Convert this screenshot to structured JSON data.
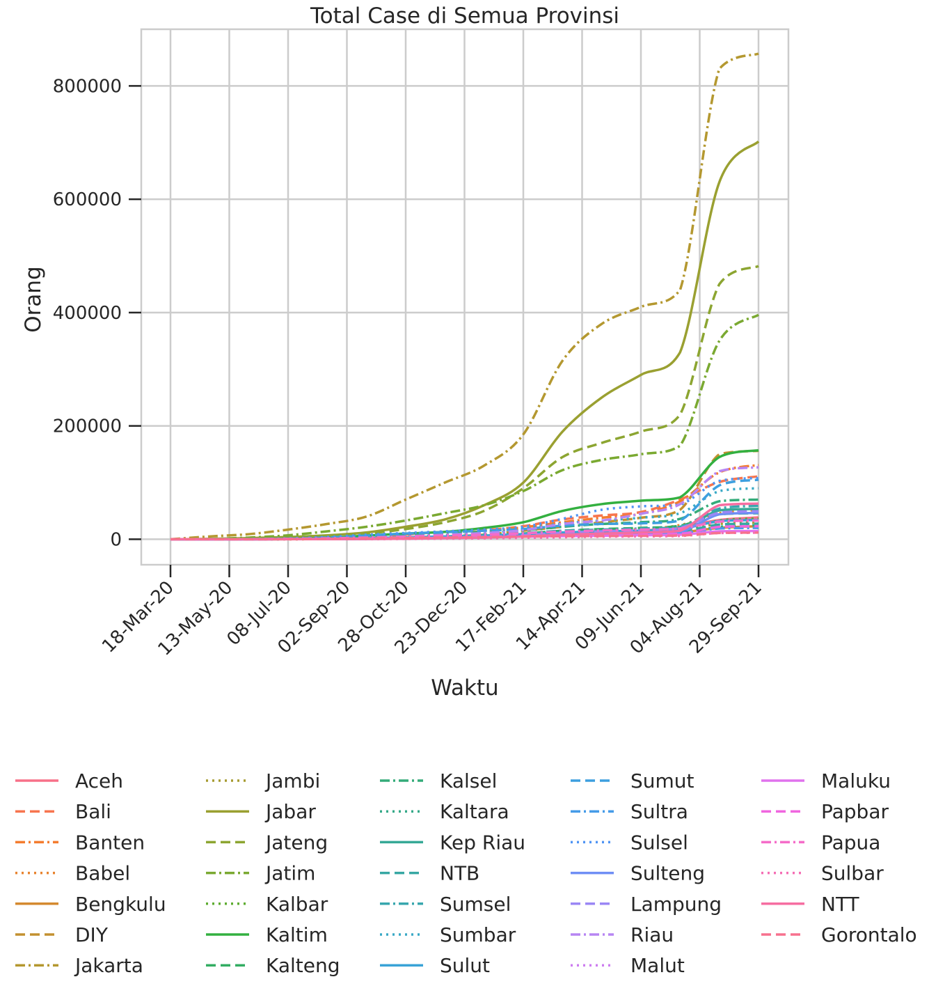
{
  "chart_data": {
    "type": "line",
    "title": "Total Case di Semua Provinsi",
    "xlabel": "Waktu",
    "ylabel": "Orang",
    "x_ticks": [
      "18-Mar-20",
      "13-May-20",
      "08-Jul-20",
      "02-Sep-20",
      "28-Oct-20",
      "23-Dec-20",
      "17-Feb-21",
      "14-Apr-21",
      "09-Jun-21",
      "04-Aug-21",
      "29-Sep-21"
    ],
    "y_ticks": [
      0,
      200000,
      400000,
      600000,
      800000
    ],
    "ylim": [
      -45000,
      900000
    ],
    "grid": true,
    "legend_position": "below",
    "series": [
      {
        "name": "Aceh",
        "color": "#f77189",
        "dash": "solid",
        "values": [
          0,
          10,
          30,
          80,
          200,
          800,
          1600,
          3000,
          5500,
          8000,
          9500,
          11500,
          15000,
          21000,
          34000,
          38500
        ]
      },
      {
        "name": "Bali",
        "color": "#f7754f",
        "dash": "dashed",
        "values": [
          0,
          50,
          150,
          500,
          1500,
          4500,
          8500,
          13000,
          16000,
          23000,
          35000,
          42000,
          48000,
          70000,
          101000,
          111000
        ]
      },
      {
        "name": "Banten",
        "color": "#f47c2f",
        "dash": "dashdot",
        "values": [
          0,
          30,
          150,
          600,
          1500,
          4500,
          8000,
          11000,
          14000,
          21000,
          30000,
          38000,
          45000,
          67000,
          118000,
          131000
        ]
      },
      {
        "name": "Babel",
        "color": "#e8832f",
        "dash": "dotted",
        "values": [
          0,
          0,
          10,
          50,
          150,
          400,
          1200,
          2500,
          4500,
          8000,
          11000,
          14000,
          18000,
          25000,
          46000,
          51500
        ]
      },
      {
        "name": "Bengkulu",
        "color": "#d48a30",
        "dash": "solid",
        "values": [
          0,
          5,
          30,
          90,
          250,
          700,
          1500,
          2500,
          3500,
          5000,
          6000,
          7000,
          8000,
          12000,
          20000,
          23000
        ]
      },
      {
        "name": "DIY",
        "color": "#c39130",
        "dash": "dashed",
        "values": [
          0,
          40,
          120,
          250,
          600,
          1400,
          3000,
          5000,
          8000,
          15000,
          22000,
          30000,
          38000,
          52000,
          150000,
          156000
        ]
      },
      {
        "name": "Jakarta",
        "color": "#b49830",
        "dash": "dashdot",
        "values": [
          0,
          5000,
          9000,
          17000,
          27000,
          40000,
          70000,
          100000,
          130000,
          185000,
          315000,
          380000,
          410000,
          440000,
          830000,
          857000
        ]
      },
      {
        "name": "Jambi",
        "color": "#a69b31",
        "dash": "dotted",
        "values": [
          0,
          5,
          20,
          60,
          150,
          400,
          1200,
          2500,
          4000,
          6000,
          7000,
          8500,
          10000,
          15000,
          27000,
          29500
        ]
      },
      {
        "name": "Jabar",
        "color": "#9aa031",
        "dash": "solid",
        "values": [
          0,
          600,
          2000,
          4000,
          7000,
          12000,
          22000,
          35000,
          60000,
          100000,
          190000,
          250000,
          290000,
          330000,
          630000,
          702000
        ]
      },
      {
        "name": "Jateng",
        "color": "#8ca531",
        "dash": "dashed",
        "values": [
          0,
          400,
          1500,
          3500,
          6000,
          10000,
          18000,
          30000,
          50000,
          90000,
          145000,
          170000,
          190000,
          220000,
          450000,
          482000
        ]
      },
      {
        "name": "Jatim",
        "color": "#7aa931",
        "dash": "dashdot",
        "values": [
          0,
          700,
          3000,
          7000,
          14000,
          22000,
          33000,
          46000,
          60000,
          85000,
          122000,
          140000,
          150000,
          165000,
          350000,
          396000
        ]
      },
      {
        "name": "Kalbar",
        "color": "#5eac31",
        "dash": "dotted",
        "values": [
          0,
          20,
          80,
          200,
          400,
          800,
          1500,
          2500,
          3500,
          5500,
          8000,
          9500,
          11000,
          15000,
          33000,
          36500
        ]
      },
      {
        "name": "Kaltim",
        "color": "#33b040",
        "dash": "solid",
        "values": [
          0,
          100,
          300,
          700,
          2500,
          6500,
          10000,
          13000,
          20000,
          30000,
          50000,
          62000,
          68000,
          74000,
          145000,
          157000
        ]
      },
      {
        "name": "Kalteng",
        "color": "#33ad63",
        "dash": "dashed",
        "values": [
          0,
          50,
          150,
          350,
          800,
          1600,
          3000,
          4500,
          7000,
          10000,
          15000,
          18000,
          20000,
          24000,
          44000,
          46000
        ]
      },
      {
        "name": "Kalsel",
        "color": "#34ab79",
        "dash": "dashdot",
        "values": [
          0,
          100,
          500,
          1500,
          3000,
          5500,
          9000,
          11000,
          13000,
          16000,
          22000,
          27000,
          30000,
          36000,
          67000,
          70000
        ]
      },
      {
        "name": "Kaltara",
        "color": "#35a988",
        "dash": "dotted",
        "values": [
          0,
          5,
          30,
          100,
          250,
          600,
          1200,
          2000,
          3000,
          4500,
          6000,
          7000,
          8000,
          10000,
          22000,
          25000
        ]
      },
      {
        "name": "Kep Riau",
        "color": "#36a996",
        "dash": "solid",
        "values": [
          0,
          30,
          150,
          400,
          800,
          1600,
          3000,
          4500,
          6000,
          8000,
          11000,
          13000,
          15000,
          18000,
          51000,
          53500
        ]
      },
      {
        "name": "NTB",
        "color": "#37a7a3",
        "dash": "dashed",
        "values": [
          0,
          30,
          150,
          500,
          1200,
          2000,
          3000,
          4000,
          5000,
          6500,
          8500,
          10000,
          11500,
          13000,
          26000,
          27500
        ]
      },
      {
        "name": "Sumsel",
        "color": "#38a7ae",
        "dash": "dashdot",
        "values": [
          0,
          20,
          150,
          700,
          1800,
          3500,
          5500,
          7000,
          9000,
          11000,
          15000,
          17000,
          19000,
          22000,
          54000,
          59000
        ]
      },
      {
        "name": "Sumbar",
        "color": "#38a9c5",
        "dash": "dotted",
        "values": [
          0,
          40,
          150,
          500,
          1200,
          2500,
          4500,
          7000,
          10000,
          18000,
          28000,
          33000,
          38000,
          46000,
          85000,
          90000
        ]
      },
      {
        "name": "Sulut",
        "color": "#3aa3d7",
        "dash": "solid",
        "values": [
          0,
          5,
          50,
          200,
          800,
          2000,
          3500,
          5000,
          6500,
          9000,
          12000,
          14000,
          15000,
          18000,
          32000,
          34000
        ]
      },
      {
        "name": "Sumut",
        "color": "#3d9fdf",
        "dash": "dashed",
        "values": [
          0,
          30,
          200,
          800,
          3000,
          6500,
          10000,
          12500,
          15000,
          18000,
          24000,
          27000,
          28000,
          33000,
          95000,
          105000
        ]
      },
      {
        "name": "Sultra",
        "color": "#469be8",
        "dash": "dashdot",
        "values": [
          0,
          10,
          60,
          250,
          600,
          1200,
          2000,
          3000,
          4000,
          5500,
          7000,
          8000,
          9000,
          11000,
          19000,
          20000
        ]
      },
      {
        "name": "Sulsel",
        "color": "#4f94f4",
        "dash": "dotted",
        "values": [
          0,
          40,
          300,
          1500,
          4000,
          8000,
          11000,
          14000,
          17000,
          22000,
          36000,
          52000,
          58000,
          61000,
          103000,
          108000
        ]
      },
      {
        "name": "Sulteng",
        "color": "#6f8ef5",
        "dash": "solid",
        "values": [
          0,
          5,
          30,
          100,
          200,
          400,
          1000,
          2000,
          3000,
          5000,
          8000,
          10000,
          11000,
          13000,
          44000,
          46500
        ]
      },
      {
        "name": "Lampung",
        "color": "#9b87f5",
        "dash": "dashed",
        "values": [
          0,
          10,
          50,
          150,
          300,
          700,
          1500,
          2500,
          4000,
          7000,
          11000,
          14000,
          16000,
          20000,
          47000,
          49500
        ]
      },
      {
        "name": "Riau",
        "color": "#b785f3",
        "dash": "dashdot",
        "values": [
          0,
          10,
          100,
          400,
          1000,
          2500,
          5000,
          8000,
          11000,
          16000,
          27000,
          33000,
          45000,
          62000,
          120000,
          127000
        ]
      },
      {
        "name": "Malut",
        "color": "#cd7ef0",
        "dash": "dotted",
        "values": [
          0,
          5,
          40,
          150,
          400,
          800,
          1200,
          1800,
          2500,
          3500,
          4500,
          5000,
          5500,
          6500,
          11000,
          12000
        ]
      },
      {
        "name": "Maluku",
        "color": "#e072ed",
        "dash": "solid",
        "values": [
          0,
          5,
          40,
          150,
          500,
          1000,
          1800,
          2500,
          3500,
          4500,
          5500,
          6200,
          7000,
          8000,
          14000,
          14500
        ]
      },
      {
        "name": "Papbar",
        "color": "#f066df",
        "dash": "dashed",
        "values": [
          0,
          5,
          40,
          150,
          400,
          900,
          1800,
          2800,
          4000,
          5500,
          7000,
          8000,
          8800,
          9500,
          22000,
          23000
        ]
      },
      {
        "name": "Papua",
        "color": "#f56cc9",
        "dash": "dashdot",
        "values": [
          0,
          10,
          200,
          800,
          1500,
          3000,
          4500,
          6500,
          8000,
          10500,
          13500,
          15500,
          17000,
          19000,
          31000,
          33000
        ]
      },
      {
        "name": "Sulbar",
        "color": "#f56db4",
        "dash": "dotted",
        "values": [
          0,
          5,
          20,
          60,
          150,
          300,
          600,
          1000,
          1500,
          2500,
          3500,
          4500,
          5000,
          5800,
          11000,
          11500
        ]
      },
      {
        "name": "NTT",
        "color": "#f66ea1",
        "dash": "solid",
        "values": [
          0,
          5,
          40,
          100,
          200,
          500,
          1000,
          2000,
          3000,
          5000,
          8000,
          10000,
          12000,
          15000,
          60000,
          63000
        ]
      },
      {
        "name": "Gorontalo",
        "color": "#f7718e",
        "dash": "dashed",
        "values": [
          0,
          5,
          50,
          200,
          700,
          1500,
          2500,
          3200,
          3800,
          4500,
          5200,
          5600,
          6000,
          6500,
          11000,
          11800
        ]
      }
    ]
  }
}
